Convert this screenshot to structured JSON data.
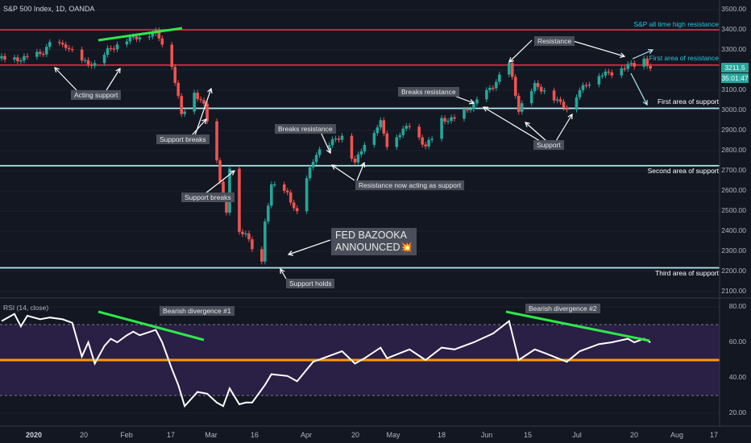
{
  "header": "S&P 500 Index, 1D, OANDA",
  "rsi_header": "RSI (14, close)",
  "fed_line1": "FED BAZOOKA",
  "fed_line2": "ANNOUNCED💥",
  "price_box": {
    "value": "3211.5",
    "countdown": "35:01:47"
  },
  "colors": {
    "bg": "#131722",
    "up": "#26a69a",
    "down": "#ef5350",
    "resistance": "#e0294a",
    "support": "#b2ebf2",
    "green": "#2ee84a",
    "orange": "#ff9800",
    "rsi_band": "#2a1f45"
  },
  "chart_data": [
    {
      "type": "candlestick",
      "title": "S&P 500 Index, 1D, OANDA",
      "ylim": [
        2050,
        3530
      ],
      "y_ticks": [
        "3500.00",
        "3400.00",
        "3300.00",
        "3200.00",
        "3100.00",
        "3000.00",
        "2900.00",
        "2800.00",
        "2700.00",
        "2600.00",
        "2500.00",
        "2400.00",
        "2300.00",
        "2200.00",
        "2100.00"
      ],
      "x_ticks": [
        "2020",
        "20",
        "Feb",
        "17",
        "Mar",
        "16",
        "Apr",
        "20",
        "May",
        "18",
        "Jun",
        "15",
        "Jul",
        "20",
        "Aug",
        "17"
      ],
      "close_path": [
        [
          "2020-01-02",
          3258
        ],
        [
          "2020-01-08",
          3253
        ],
        [
          "2020-01-15",
          3289
        ],
        [
          "2020-01-17",
          3330
        ],
        [
          "2020-01-22",
          3321
        ],
        [
          "2020-01-27",
          3243
        ],
        [
          "2020-01-31",
          3225
        ],
        [
          "2020-02-04",
          3297
        ],
        [
          "2020-02-10",
          3352
        ],
        [
          "2020-02-19",
          3386
        ],
        [
          "2020-02-21",
          3337
        ],
        [
          "2020-02-24",
          3225
        ],
        [
          "2020-02-27",
          2978
        ],
        [
          "2020-03-02",
          3090
        ],
        [
          "2020-03-05",
          3023
        ],
        [
          "2020-03-09",
          2746
        ],
        [
          "2020-03-12",
          2480
        ],
        [
          "2020-03-13",
          2711
        ],
        [
          "2020-03-16",
          2386
        ],
        [
          "2020-03-18",
          2398
        ],
        [
          "2020-03-20",
          2304
        ],
        [
          "2020-03-23",
          2237
        ],
        [
          "2020-03-24",
          2447
        ],
        [
          "2020-03-26",
          2630
        ],
        [
          "2020-03-31",
          2584
        ],
        [
          "2020-04-03",
          2488
        ],
        [
          "2020-04-06",
          2663
        ],
        [
          "2020-04-09",
          2789
        ],
        [
          "2020-04-14",
          2846
        ],
        [
          "2020-04-17",
          2875
        ],
        [
          "2020-04-21",
          2737
        ],
        [
          "2020-04-24",
          2837
        ],
        [
          "2020-04-29",
          2939
        ],
        [
          "2020-05-01",
          2830
        ],
        [
          "2020-05-08",
          2929
        ],
        [
          "2020-05-13",
          2820
        ],
        [
          "2020-05-15",
          2863
        ],
        [
          "2020-05-18",
          2953
        ],
        [
          "2020-05-22",
          2955
        ],
        [
          "2020-05-28",
          3029
        ],
        [
          "2020-06-03",
          3122
        ],
        [
          "2020-06-08",
          3232
        ],
        [
          "2020-06-11",
          3002
        ],
        [
          "2020-06-16",
          3124
        ],
        [
          "2020-06-19",
          3097
        ],
        [
          "2020-06-26",
          3009
        ],
        [
          "2020-06-30",
          3100
        ],
        [
          "2020-07-06",
          3179
        ],
        [
          "2020-07-10",
          3185
        ],
        [
          "2020-07-15",
          3226
        ],
        [
          "2020-07-17",
          3224
        ],
        [
          "2020-07-20",
          3251
        ],
        [
          "2020-07-22",
          3211
        ]
      ]
    },
    {
      "type": "line",
      "title": "RSI (14, close)",
      "ylim": [
        15,
        85
      ],
      "y_ticks": [
        "80.00",
        "60.00",
        "40.00",
        "20.00"
      ],
      "levels": [
        70,
        50,
        30
      ],
      "series": [
        {
          "values": [
            [
              "2020-01-02",
              72
            ],
            [
              "2020-01-06",
              76
            ],
            [
              "2020-01-08",
              69
            ],
            [
              "2020-01-10",
              75
            ],
            [
              "2020-01-14",
              73
            ],
            [
              "2020-01-17",
              74
            ],
            [
              "2020-01-21",
              73
            ],
            [
              "2020-01-24",
              71
            ],
            [
              "2020-01-27",
              52
            ],
            [
              "2020-01-29",
              60
            ],
            [
              "2020-01-31",
              48
            ],
            [
              "2020-02-03",
              58
            ],
            [
              "2020-02-05",
              62
            ],
            [
              "2020-02-07",
              60
            ],
            [
              "2020-02-10",
              64
            ],
            [
              "2020-02-12",
              66
            ],
            [
              "2020-02-14",
              64
            ],
            [
              "2020-02-19",
              67
            ],
            [
              "2020-02-21",
              60
            ],
            [
              "2020-02-24",
              45
            ],
            [
              "2020-02-26",
              36
            ],
            [
              "2020-02-28",
              24
            ],
            [
              "2020-03-03",
              32
            ],
            [
              "2020-03-06",
              31
            ],
            [
              "2020-03-09",
              26
            ],
            [
              "2020-03-11",
              24
            ],
            [
              "2020-03-13",
              34
            ],
            [
              "2020-03-16",
              25
            ],
            [
              "2020-03-18",
              26
            ],
            [
              "2020-03-20",
              26
            ],
            [
              "2020-03-24",
              36
            ],
            [
              "2020-03-26",
              42
            ],
            [
              "2020-03-31",
              41
            ],
            [
              "2020-04-03",
              38
            ],
            [
              "2020-04-08",
              49
            ],
            [
              "2020-04-14",
              53
            ],
            [
              "2020-04-17",
              55
            ],
            [
              "2020-04-21",
              48
            ],
            [
              "2020-04-24",
              51
            ],
            [
              "2020-04-29",
              57
            ],
            [
              "2020-05-01",
              51
            ],
            [
              "2020-05-08",
              56
            ],
            [
              "2020-05-13",
              50
            ],
            [
              "2020-05-18",
              57
            ],
            [
              "2020-05-22",
              56
            ],
            [
              "2020-05-28",
              60
            ],
            [
              "2020-06-03",
              65
            ],
            [
              "2020-06-08",
              72
            ],
            [
              "2020-06-11",
              50
            ],
            [
              "2020-06-16",
              56
            ],
            [
              "2020-06-19",
              54
            ],
            [
              "2020-06-26",
              49
            ],
            [
              "2020-06-30",
              55
            ],
            [
              "2020-07-06",
              59
            ],
            [
              "2020-07-10",
              60
            ],
            [
              "2020-07-15",
              62
            ],
            [
              "2020-07-17",
              60
            ],
            [
              "2020-07-20",
              62
            ],
            [
              "2020-07-22",
              60
            ]
          ]
        }
      ]
    }
  ],
  "levels_right": [
    {
      "label": "S&P all time high resistance",
      "price": 3400,
      "kind": "resistance"
    },
    {
      "label": "First area of resistance",
      "price": 3225,
      "kind": "resistance"
    },
    {
      "label": "First area of support",
      "price": 3010,
      "kind": "support"
    },
    {
      "label": "Second area of support",
      "price": 2725,
      "kind": "support"
    },
    {
      "label": "Third area of support",
      "price": 2218,
      "kind": "support"
    }
  ],
  "notes": [
    "Acting support",
    "Support breaks",
    "Support breaks",
    "Breaks resistance",
    "Resistance now acting as support",
    "Support holds",
    "Breaks resistance",
    "Resistance",
    "Support",
    "Bearish divergence #1",
    "Bearish divergence #2"
  ]
}
